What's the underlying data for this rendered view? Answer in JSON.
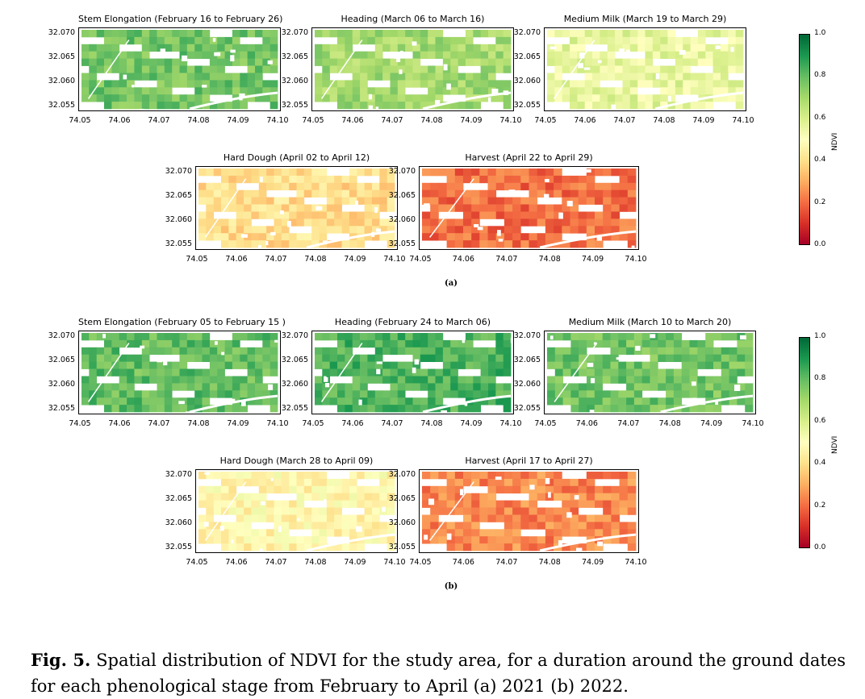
{
  "colorbar": {
    "label": "NDVI",
    "ticks": [
      "1.0",
      "0.8",
      "0.6",
      "0.4",
      "0.2",
      "0.0"
    ],
    "colors": [
      "#a50026",
      "#d73027",
      "#f46d43",
      "#fdae61",
      "#fee08b",
      "#ffffbf",
      "#d9ef8b",
      "#a6d96a",
      "#66bd63",
      "#1a9850",
      "#006837"
    ]
  },
  "axes": {
    "x_ticks": [
      "74.05",
      "74.06",
      "74.07",
      "74.08",
      "74.09",
      "74.10"
    ],
    "y_ticks": [
      "32.070",
      "32.065",
      "32.060",
      "32.055"
    ]
  },
  "groups": [
    {
      "label": "(a)",
      "panels": [
        {
          "title": "Stem Elongation (February 16 to February 26)",
          "mean_ndvi": 0.78
        },
        {
          "title": "Heading (March 06 to March 16)",
          "mean_ndvi": 0.7
        },
        {
          "title": "Medium Milk (March 19 to March 29)",
          "mean_ndvi": 0.56
        },
        {
          "title": "Hard Dough (April 02 to April 12)",
          "mean_ndvi": 0.4
        },
        {
          "title": "Harvest (April 22 to April 29)",
          "mean_ndvi": 0.2
        }
      ]
    },
    {
      "label": "(b)",
      "panels": [
        {
          "title": "Stem Elongation (February 05 to February 15 )",
          "mean_ndvi": 0.8
        },
        {
          "title": "Heading (February 24 to March 06)",
          "mean_ndvi": 0.83
        },
        {
          "title": "Medium Milk (March 10 to March 20)",
          "mean_ndvi": 0.78
        },
        {
          "title": "Hard Dough (March 28 to April 09)",
          "mean_ndvi": 0.47
        },
        {
          "title": "Harvest (April 17 to April 27)",
          "mean_ndvi": 0.24
        }
      ]
    }
  ],
  "caption": {
    "label": "Fig. 5.",
    "text": "Spatial distribution of NDVI for the study area, for a duration around the ground dates for each phenological stage from February to April (a) 2021 (b) 2022."
  },
  "chart_data": {
    "type": "heatmap",
    "xlabel": "",
    "ylabel": "",
    "xlim": [
      74.05,
      74.1
    ],
    "ylim": [
      32.0535,
      32.0715
    ],
    "colorbar_range": [
      0.0,
      1.0
    ],
    "colormap": "RdYlGn",
    "series": [
      {
        "group": "(a)",
        "stage": "Stem Elongation (February 16 to February 26)",
        "approx_mean_ndvi": 0.78
      },
      {
        "group": "(a)",
        "stage": "Heading (March 06 to March 16)",
        "approx_mean_ndvi": 0.7
      },
      {
        "group": "(a)",
        "stage": "Medium Milk (March 19 to March 29)",
        "approx_mean_ndvi": 0.56
      },
      {
        "group": "(a)",
        "stage": "Hard Dough (April 02 to April 12)",
        "approx_mean_ndvi": 0.4
      },
      {
        "group": "(a)",
        "stage": "Harvest (April 22 to April 29)",
        "approx_mean_ndvi": 0.2
      },
      {
        "group": "(b)",
        "stage": "Stem Elongation (February 05 to February 15 )",
        "approx_mean_ndvi": 0.8
      },
      {
        "group": "(b)",
        "stage": "Heading (February 24 to March 06)",
        "approx_mean_ndvi": 0.83
      },
      {
        "group": "(b)",
        "stage": "Medium Milk (March 10 to March 20)",
        "approx_mean_ndvi": 0.78
      },
      {
        "group": "(b)",
        "stage": "Hard Dough (March 28 to April 09)",
        "approx_mean_ndvi": 0.47
      },
      {
        "group": "(b)",
        "stage": "Harvest (April 17 to April 27)",
        "approx_mean_ndvi": 0.24
      }
    ]
  }
}
